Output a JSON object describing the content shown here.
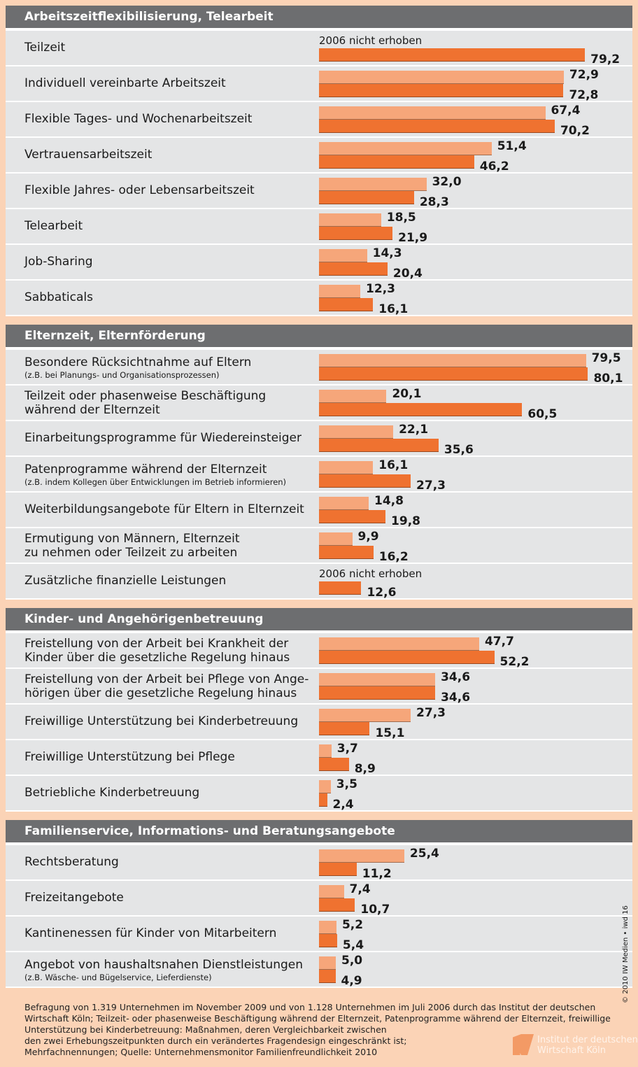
{
  "chart_data": [
    {
      "type": "bar",
      "title": "Arbeitszeitflexibilisierung, Telearbeit",
      "categories": [
        "Teilzeit",
        "Individuell vereinbarte Arbeitszeit",
        "Flexible Tages- und Wochenarbeitszeit",
        "Vertrauensarbeitszeit",
        "Flexible Jahres- oder Lebensarbeitszeit",
        "Telearbeit",
        "Job-Sharing",
        "Sabbaticals"
      ],
      "annotation": {
        "text": "2006 nicht erhoben",
        "category": "Teilzeit"
      },
      "xlim": [
        0,
        100
      ],
      "series": [
        {
          "color": "#f6a67a",
          "values": [
            null,
            72.9,
            67.4,
            51.4,
            32.0,
            18.5,
            14.3,
            12.3
          ],
          "value_labels": [
            null,
            "72,9",
            "67,4",
            "51,4",
            "32,0",
            "18,5",
            "14,3",
            "12,3"
          ]
        },
        {
          "color": "#ef7230",
          "values": [
            79.2,
            72.8,
            70.2,
            46.2,
            28.3,
            21.9,
            20.4,
            16.1
          ],
          "value_labels": [
            "79,2",
            "72,8",
            "70,2",
            "46,2",
            "28,3",
            "21,9",
            "20,4",
            "16,1"
          ]
        }
      ]
    },
    {
      "type": "bar",
      "title": "Elternzeit, Elternförderung",
      "categories": [
        "Besondere Rücksichtnahme auf Eltern",
        "Teilzeit oder phasenweise Beschäftigung\nwährend der Elternzeit",
        "Einarbeitungsprogramme für Wiedereinsteiger",
        "Patenprogramme während der Elternzeit",
        "Weiterbildungsangebote für Eltern in Elternzeit",
        "Ermutigung von Männern, Elternzeit\nzu nehmen oder Teilzeit zu arbeiten",
        "Zusätzliche finanzielle Leistungen"
      ],
      "category_notes": [
        "(z.B. bei Planungs- und Organisationsprozessen)",
        null,
        null,
        "(z.B. indem Kollegen über Entwicklungen im Betrieb informieren)",
        null,
        null,
        null
      ],
      "annotation": {
        "text": "2006 nicht erhoben",
        "category": "Zusätzliche finanzielle Leistungen"
      },
      "xlim": [
        0,
        100
      ],
      "series": [
        {
          "color": "#f6a67a",
          "values": [
            79.5,
            20.1,
            22.1,
            16.1,
            14.8,
            9.9,
            null
          ],
          "value_labels": [
            "79,5",
            "20,1",
            "22,1",
            "16,1",
            "14,8",
            "9,9",
            null
          ]
        },
        {
          "color": "#ef7230",
          "values": [
            80.1,
            60.5,
            35.6,
            27.3,
            19.8,
            16.2,
            12.6
          ],
          "value_labels": [
            "80,1",
            "60,5",
            "35,6",
            "27,3",
            "19,8",
            "16,2",
            "12,6"
          ]
        }
      ]
    },
    {
      "type": "bar",
      "title": "Kinder- und Angehörigenbetreuung",
      "categories": [
        "Freistellung von der Arbeit bei Krankheit der\nKinder über die gesetzliche Regelung hinaus",
        "Freistellung von der Arbeit bei Pflege von Ange-\nhörigen über die gesetzliche Regelung hinaus",
        "Freiwillige Unterstützung bei Kinderbetreuung",
        "Freiwillige Unterstützung bei Pflege",
        "Betriebliche Kinderbetreuung"
      ],
      "xlim": [
        0,
        100
      ],
      "series": [
        {
          "color": "#f6a67a",
          "values": [
            47.7,
            34.6,
            27.3,
            3.7,
            3.5
          ],
          "value_labels": [
            "47,7",
            "34,6",
            "27,3",
            "3,7",
            "3,5"
          ]
        },
        {
          "color": "#ef7230",
          "values": [
            52.2,
            34.6,
            15.1,
            8.9,
            2.4
          ],
          "value_labels": [
            "52,2",
            "34,6",
            "15,1",
            "8,9",
            "2,4"
          ]
        }
      ]
    },
    {
      "type": "bar",
      "title": "Familienservice, Informations- und Beratungsangebote",
      "categories": [
        "Rechtsberatung",
        "Freizeitangebote",
        "Kantinenessen für Kinder von Mitarbeitern",
        "Angebot von haushaltsnahen Dienstleistungen"
      ],
      "category_notes": [
        null,
        null,
        null,
        "(z.B. Wäsche- und Bügelservice, Lieferdienste)"
      ],
      "xlim": [
        0,
        100
      ],
      "series": [
        {
          "color": "#f6a67a",
          "values": [
            25.4,
            7.4,
            5.2,
            5.0
          ],
          "value_labels": [
            "25,4",
            "7,4",
            "5,2",
            "5,0"
          ]
        },
        {
          "color": "#ef7230",
          "values": [
            11.2,
            10.7,
            5.4,
            4.9
          ],
          "value_labels": [
            "11,2",
            "10,7",
            "5,4",
            "4,9"
          ]
        }
      ]
    }
  ],
  "footnote": "Befragung von 1.319 Unternehmen im November 2009 und von 1.128 Unternehmen im Juli 2006 durch das Institut der deutschen Wirtschaft Köln; Teilzeit- oder phasenweise Beschäftigung während der Elternzeit, Patenprogramme während der Elternzeit, freiwillige Unterstützung bei Kinderbetreuung: Maßnahmen, deren Vergleichbarkeit zwischen\nden zwei Erhebungszeitpunkten durch ein verändertes Fragendesign eingeschränkt ist;\nMehrfachnennungen; Quelle: Unternehmensmonitor Familienfreundlichkeit 2010",
  "credit": "© 2010 IW Medien • iwd 16",
  "logo": [
    "Institut der deutschen",
    "Wirtschaft Köln"
  ]
}
